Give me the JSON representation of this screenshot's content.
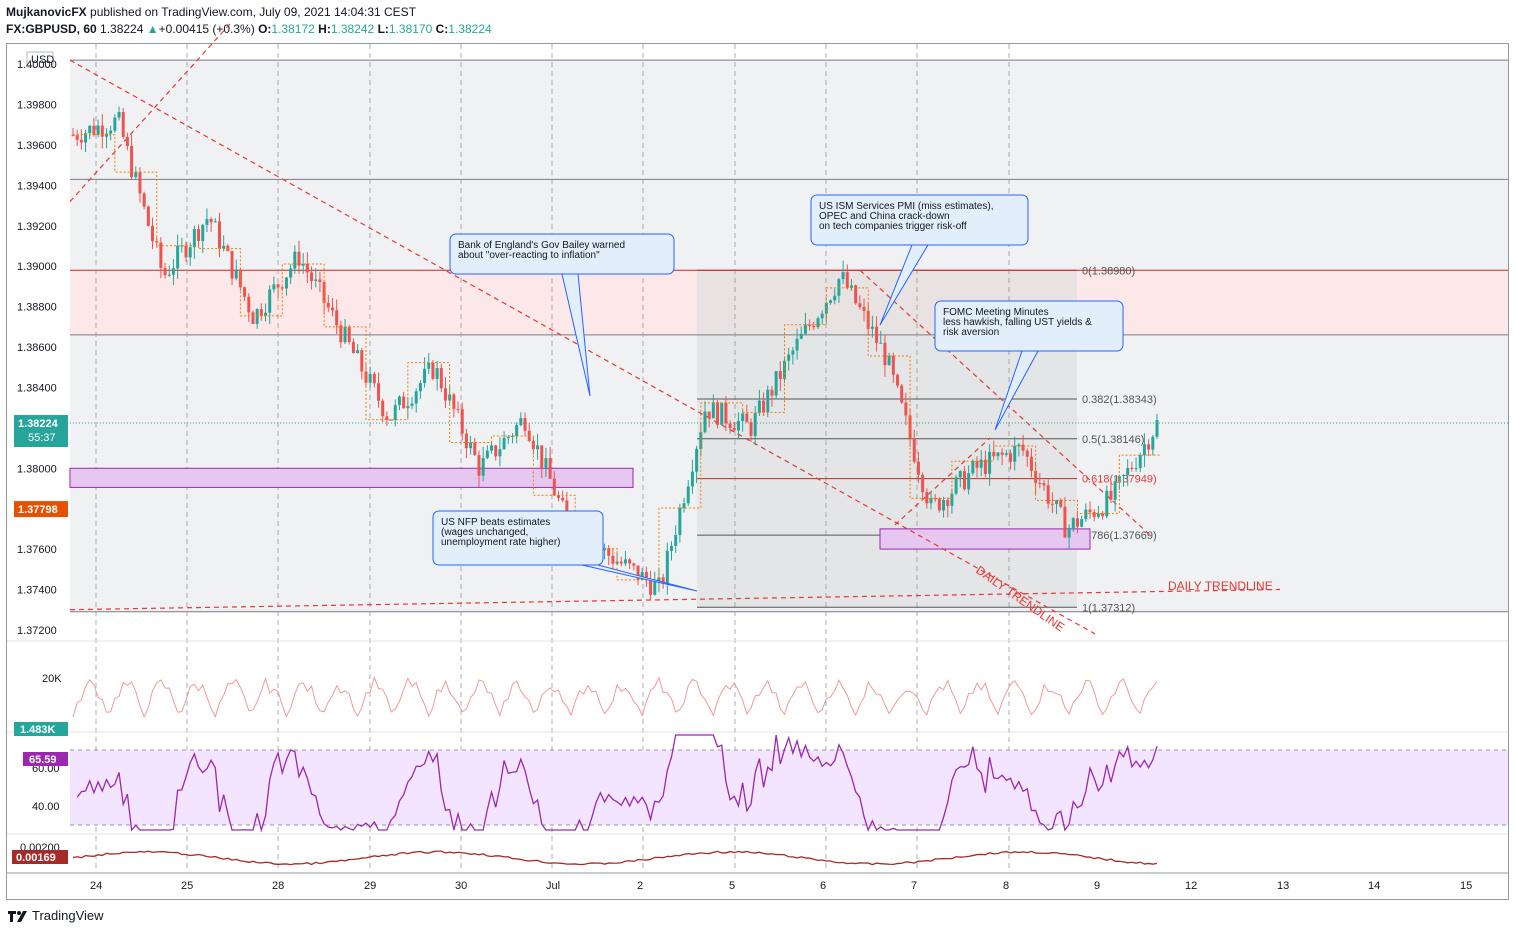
{
  "header": {
    "author": "MujkanovicFX",
    "published_text": "published on TradingView.com, July 09, 2021 14:04:31 CEST",
    "symbol": "FX:GBPUSD, 60",
    "last": "1.38224",
    "change": "+0.00415 (+0.3%)",
    "o_label": "O:",
    "o_val": "1.38172",
    "h_label": "H:",
    "h_val": "1.38242",
    "l_label": "L:",
    "l_val": "1.38170",
    "c_label": "C:",
    "c_val": "1.38224"
  },
  "footer": {
    "brand": "TradingView"
  },
  "colors": {
    "up": "#26a69a",
    "down": "#ef5350",
    "rsi": "#9c27b0",
    "rsi_band": "#f3e5ff",
    "fib_zone": "#fce8e8",
    "macd": "#a52a2a",
    "annot_border": "#2962ff",
    "annot_fill": "#e3eefb",
    "trend": "#e53935",
    "box": "#e6c7f0"
  },
  "chart_data": {
    "type": "candlestick",
    "currency": "USD",
    "y_ticks": [
      "1.40000",
      "1.39800",
      "1.39600",
      "1.39400",
      "1.39200",
      "1.39000",
      "1.38800",
      "1.38600",
      "1.38400",
      "1.38200",
      "1.38000",
      "1.37800",
      "1.37600",
      "1.37400",
      "1.37200"
    ],
    "ylim": [
      1.3715,
      1.401
    ],
    "x_ticks": [
      "24",
      "25",
      "28",
      "29",
      "30",
      "Jul",
      "2",
      "5",
      "6",
      "7",
      "8",
      "9",
      "12",
      "13",
      "14",
      "15"
    ],
    "price_label_current": "1.38224",
    "countdown": "55:37",
    "price_label_secondary": "1.37798",
    "volume_tick": "20K",
    "volume_last": "1.483K",
    "rsi_ticks": [
      "60.00",
      "40.00"
    ],
    "rsi_last": "65.59",
    "macd_tick": "0.00200",
    "macd_last": "0.00169",
    "fib_levels": [
      {
        "label": "0(1.38980)",
        "value": 1.3898
      },
      {
        "label": "0.382(1.38343)",
        "value": 1.38343
      },
      {
        "label": "0.5(1.38146)",
        "value": 1.38146
      },
      {
        "label": "0.618(1.37949)",
        "value": 1.37949
      },
      {
        "label": "0.786(1.37669)",
        "value": 1.37669
      },
      {
        "label": "1(1.37312)",
        "value": 1.37312
      }
    ],
    "trendline_labels": [
      "DAILY TRENDLINE",
      "DAILY TRENDLINE"
    ],
    "annotations": [
      {
        "lines": [
          "Bank of England's Gov Bailey warned",
          "about \"over-reacting to inflation\""
        ]
      },
      {
        "lines": [
          "US NFP beats estimates",
          "(wages unchanged,",
          "unemployment rate higher)"
        ]
      },
      {
        "lines": [
          "US ISM Services PMI (miss estimates),",
          "OPEC and China crack-down",
          "on tech companies trigger risk-off"
        ]
      },
      {
        "lines": [
          "FOMC Meeting Minutes",
          "less hawkish, falling UST yields &",
          "risk aversion"
        ]
      }
    ],
    "price_path": [
      {
        "day": "24",
        "close": 1.3965
      },
      {
        "day": "24",
        "close": 1.3972
      },
      {
        "day": "25",
        "close": 1.3895
      },
      {
        "day": "25",
        "close": 1.3925
      },
      {
        "day": "28",
        "close": 1.3875
      },
      {
        "day": "28",
        "close": 1.3905
      },
      {
        "day": "29",
        "close": 1.3865
      },
      {
        "day": "29",
        "close": 1.3825
      },
      {
        "day": "30",
        "close": 1.385
      },
      {
        "day": "30",
        "close": 1.38
      },
      {
        "day": "Jul",
        "close": 1.3825
      },
      {
        "day": "Jul",
        "close": 1.377
      },
      {
        "day": "2",
        "close": 1.3755
      },
      {
        "day": "2",
        "close": 1.374
      },
      {
        "day": "5",
        "close": 1.383
      },
      {
        "day": "5",
        "close": 1.382
      },
      {
        "day": "6",
        "close": 1.386
      },
      {
        "day": "6",
        "close": 1.3895
      },
      {
        "day": "6",
        "close": 1.3855
      },
      {
        "day": "7",
        "close": 1.378
      },
      {
        "day": "7",
        "close": 1.38
      },
      {
        "day": "8",
        "close": 1.381
      },
      {
        "day": "8",
        "close": 1.377
      },
      {
        "day": "9",
        "close": 1.3785
      },
      {
        "day": "9",
        "close": 1.3822
      }
    ]
  }
}
